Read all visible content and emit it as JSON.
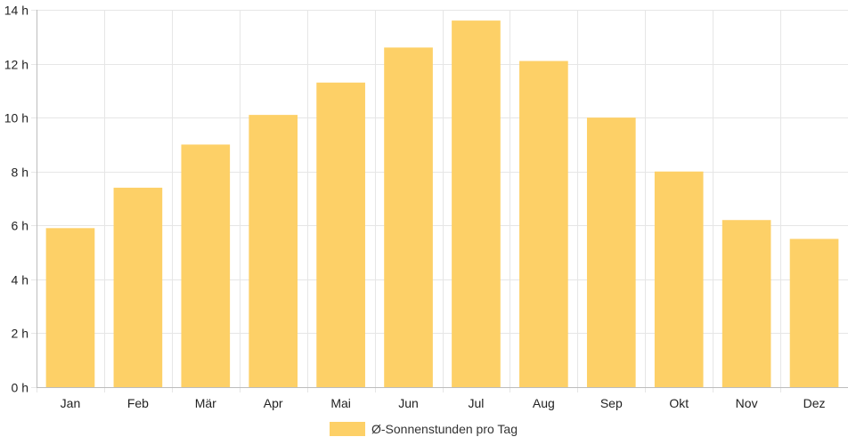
{
  "chart_data": {
    "type": "bar",
    "categories": [
      "Jan",
      "Feb",
      "Mär",
      "Apr",
      "Mai",
      "Jun",
      "Jul",
      "Aug",
      "Sep",
      "Okt",
      "Nov",
      "Dez"
    ],
    "series": [
      {
        "name": "Ø-Sonnenstunden pro Tag",
        "values": [
          5.9,
          7.4,
          9.0,
          10.1,
          11.3,
          12.6,
          13.6,
          12.1,
          10.0,
          8.0,
          6.2,
          5.5
        ],
        "color": "#fdd067"
      }
    ],
    "ylim": [
      0,
      14
    ],
    "yticks": [
      0,
      2,
      4,
      6,
      8,
      10,
      12,
      14
    ],
    "y_tick_suffix": " h",
    "grid": true,
    "legend_position": "bottom-center",
    "grid_color": "#e6e6e6",
    "axis_color": "#bdbdbd"
  }
}
